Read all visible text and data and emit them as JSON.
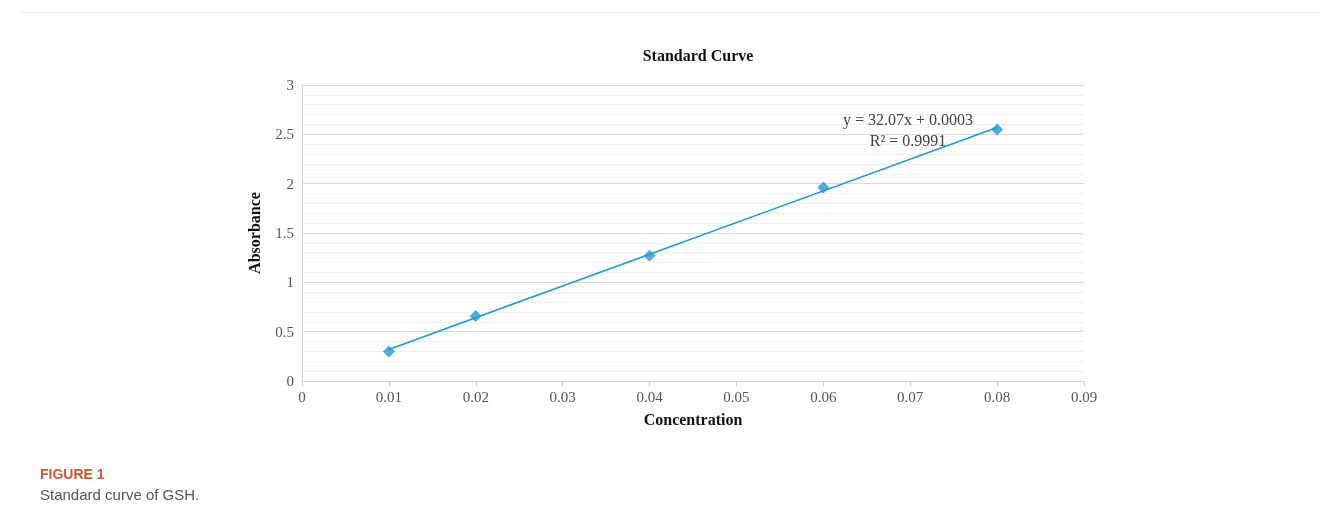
{
  "chart_data": {
    "type": "scatter",
    "title": "Standard Curve",
    "xlabel": "Concentration",
    "ylabel": "Absorbance",
    "x": [
      0.01,
      0.02,
      0.04,
      0.06,
      0.08
    ],
    "series": [
      {
        "color": "#1f98d6",
        "marker": "diamond",
        "values": [
          0.3,
          0.66,
          1.27,
          1.96,
          2.55
        ]
      },
      {
        "type": "line",
        "color": "#1f98d6",
        "marker": "none",
        "line_style": "solid",
        "x": [
          0.01,
          0.08
        ],
        "values": [
          0.32,
          2.57
        ]
      }
    ],
    "annotations": [
      "y = 32.07x + 0.0003",
      "R² = 0.9991",
      "FIGURE 1",
      "Standard curve of GSH."
    ],
    "xlim": [
      0,
      0.09
    ],
    "xticks": [
      0,
      0.01,
      0.02,
      0.03,
      0.04,
      0.05,
      0.06,
      0.07,
      0.08,
      0.09
    ],
    "ylim": [
      0,
      3
    ],
    "yticks": [
      0,
      0.5,
      1,
      1.5,
      2,
      2.5,
      3
    ],
    "grid": "y"
  }
}
